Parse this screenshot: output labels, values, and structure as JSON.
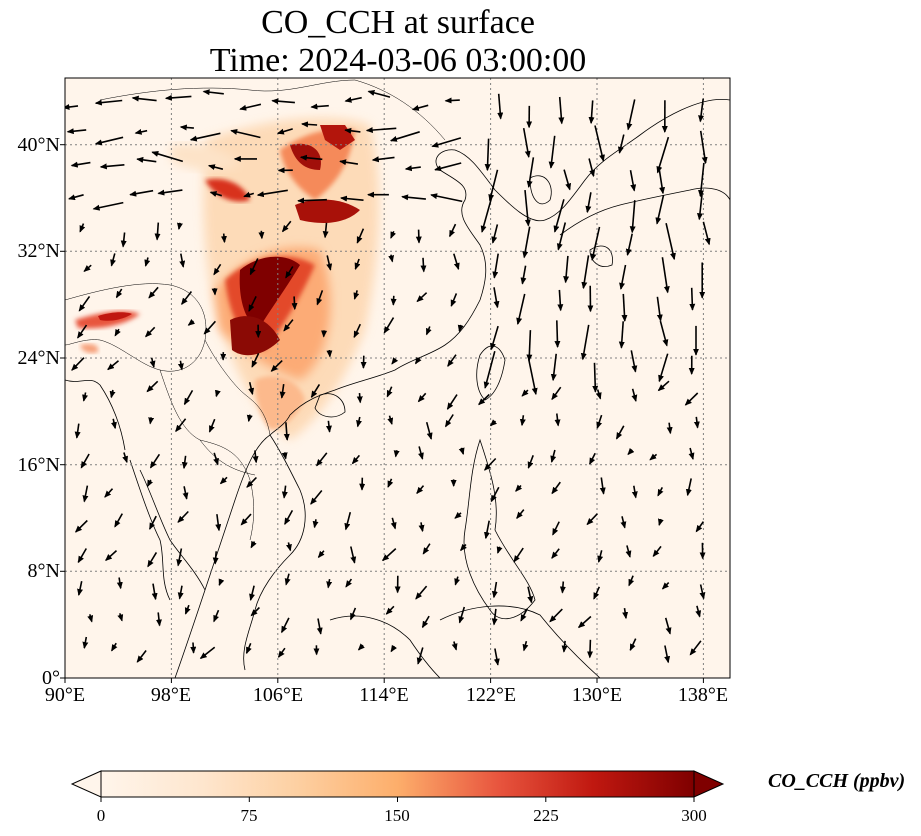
{
  "title_line1": "CO_CCH at surface",
  "title_line2": "Time: 2024-03-06 03:00:00",
  "lat_labels": [
    "40°N",
    "32°N",
    "24°N",
    "16°N",
    "8°N",
    "0°"
  ],
  "lon_labels": [
    "90°E",
    "98°E",
    "106°E",
    "114°E",
    "122°E",
    "130°E",
    "138°E"
  ],
  "colorbar": {
    "label": "CO_CCH (ppbv)",
    "ticks": [
      "0",
      "75",
      "150",
      "225",
      "300"
    ],
    "colormap": [
      "#fff5eb",
      "#fdd9b2",
      "#fdae6b",
      "#f16913",
      "#d94801",
      "#a63603",
      "#7f0000"
    ],
    "min": 0,
    "max": 300
  },
  "map": {
    "lon_range": [
      90,
      140
    ],
    "lat_range": [
      0,
      45
    ],
    "background_color": "#fff5eb",
    "high_concentration_color": "#7f0000",
    "gridlines": "dotted"
  }
}
